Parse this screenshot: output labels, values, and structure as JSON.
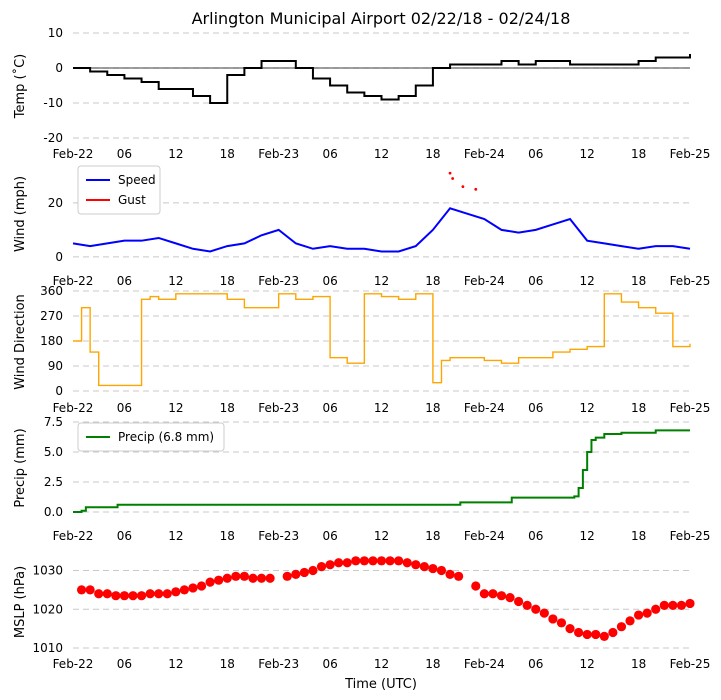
{
  "figure": {
    "title": "Arlington Municipal Airport 02/22/18 - 02/24/18",
    "xlabel": "Time (UTC)",
    "x_tick_labels": [
      "Feb-22",
      "06",
      "12",
      "18",
      "Feb-23",
      "06",
      "12",
      "18",
      "Feb-24",
      "06",
      "12",
      "18",
      "Feb-25"
    ]
  },
  "chart_data": [
    {
      "type": "line",
      "name": "temperature",
      "ylabel": "Temp (˚C)",
      "yticks": [
        10,
        0,
        -10,
        -20
      ],
      "ylim": [
        -20,
        10
      ],
      "color": "#000000",
      "series": [
        {
          "name": "Temp",
          "x_hours": [
            0,
            2,
            4,
            6,
            8,
            10,
            12,
            14,
            16,
            18,
            20,
            22,
            24,
            26,
            28,
            30,
            32,
            34,
            36,
            38,
            40,
            42,
            44,
            46,
            48,
            50,
            52,
            54,
            56,
            58,
            60,
            62,
            64,
            66,
            68,
            70,
            72
          ],
          "values": [
            0,
            -1,
            -2,
            -3,
            -4,
            -6,
            -6,
            -8,
            -10,
            -2,
            0,
            2,
            2,
            0,
            -3,
            -5,
            -7,
            -8,
            -9,
            -8,
            -5,
            0,
            1,
            1,
            1,
            2,
            1,
            2,
            2,
            1,
            1,
            1,
            1,
            2,
            3,
            3,
            4
          ]
        }
      ]
    },
    {
      "type": "line",
      "name": "wind",
      "ylabel": "Wind (mph)",
      "yticks": [
        20,
        0
      ],
      "ylim": [
        -3,
        34
      ],
      "legend": [
        "Speed",
        "Gust"
      ],
      "series": [
        {
          "name": "Speed",
          "color": "#0000ff",
          "x_hours": [
            0,
            2,
            4,
            6,
            8,
            10,
            12,
            14,
            16,
            18,
            20,
            22,
            24,
            26,
            28,
            30,
            32,
            34,
            36,
            38,
            40,
            42,
            44,
            46,
            48,
            50,
            52,
            54,
            56,
            58,
            60,
            62,
            64,
            66,
            68,
            70,
            72
          ],
          "values": [
            5,
            4,
            5,
            6,
            6,
            7,
            5,
            3,
            2,
            4,
            5,
            8,
            10,
            5,
            3,
            4,
            3,
            3,
            2,
            2,
            4,
            10,
            18,
            16,
            14,
            10,
            9,
            10,
            12,
            14,
            6,
            5,
            4,
            3,
            4,
            4,
            3
          ]
        },
        {
          "name": "Gust",
          "color": "#ff0000",
          "x_hours": [
            44,
            44.3,
            45.5,
            47
          ],
          "values": [
            31,
            29,
            26,
            25
          ]
        }
      ]
    },
    {
      "type": "line",
      "name": "wind_direction",
      "ylabel": "Wind Direction",
      "yticks": [
        360,
        270,
        180,
        90,
        0
      ],
      "ylim": [
        0,
        360
      ],
      "color": "#ffa500",
      "series": [
        {
          "name": "Direction",
          "x_hours": [
            0,
            1,
            2,
            3,
            4,
            6,
            8,
            9,
            10,
            12,
            14,
            16,
            18,
            20,
            22,
            24,
            26,
            28,
            30,
            32,
            34,
            36,
            38,
            40,
            42,
            43,
            44,
            46,
            48,
            50,
            52,
            54,
            56,
            58,
            60,
            62,
            64,
            66,
            68,
            70,
            72
          ],
          "values": [
            180,
            300,
            140,
            20,
            20,
            20,
            330,
            340,
            330,
            350,
            350,
            350,
            330,
            300,
            300,
            350,
            330,
            340,
            120,
            100,
            350,
            340,
            330,
            350,
            30,
            110,
            120,
            120,
            110,
            100,
            120,
            120,
            140,
            150,
            160,
            350,
            320,
            300,
            280,
            160,
            170
          ]
        }
      ]
    },
    {
      "type": "line",
      "name": "precip",
      "ylabel": "Precip (mm)",
      "yticks": [
        7.5,
        5.0,
        2.5,
        0.0
      ],
      "ylim": [
        0,
        7.5
      ],
      "legend": [
        "Precip (6.8 mm)"
      ],
      "color": "#008000",
      "series": [
        {
          "name": "Precip (6.8 mm)",
          "x_hours": [
            0,
            1,
            1.5,
            5,
            5.2,
            45,
            45.2,
            51,
            51.2,
            58.5,
            59,
            59.5,
            60,
            60.5,
            61,
            62,
            64,
            66,
            68,
            70,
            72
          ],
          "values": [
            0,
            0.1,
            0.4,
            0.4,
            0.6,
            0.6,
            0.8,
            0.8,
            1.2,
            1.3,
            2.0,
            3.5,
            5.0,
            6.0,
            6.2,
            6.5,
            6.6,
            6.6,
            6.8,
            6.8,
            6.8
          ]
        }
      ]
    },
    {
      "type": "scatter",
      "name": "mslp",
      "ylabel": "MSLP (hPa)",
      "yticks": [
        1030,
        1020,
        1010
      ],
      "ylim": [
        1010,
        1034
      ],
      "color": "#ff0000",
      "series": [
        {
          "name": "MSLP",
          "x_hours": [
            1,
            2,
            3,
            4,
            5,
            6,
            7,
            8,
            9,
            10,
            11,
            12,
            13,
            14,
            15,
            16,
            17,
            18,
            19,
            20,
            21,
            22,
            23,
            25,
            26,
            27,
            28,
            29,
            30,
            31,
            32,
            33,
            34,
            35,
            36,
            37,
            38,
            39,
            40,
            41,
            42,
            43,
            44,
            45,
            47,
            48,
            49,
            50,
            51,
            52,
            53,
            54,
            55,
            56,
            57,
            58,
            59,
            60,
            61,
            62,
            63,
            64,
            65,
            66,
            67,
            68,
            69,
            70,
            71,
            72
          ],
          "values": [
            1025,
            1025,
            1024,
            1024,
            1023.5,
            1023.5,
            1023.5,
            1023.5,
            1024,
            1024,
            1024,
            1024.5,
            1025,
            1025.5,
            1026,
            1027,
            1027.5,
            1028,
            1028.5,
            1028.5,
            1028,
            1028,
            1028,
            1028.5,
            1029,
            1029.5,
            1030,
            1031,
            1031.5,
            1032,
            1032,
            1032.5,
            1032.5,
            1032.5,
            1032.5,
            1032.5,
            1032.5,
            1032,
            1031.5,
            1031,
            1030.5,
            1030,
            1029,
            1028.5,
            1026,
            1024,
            1024,
            1023.5,
            1023,
            1022,
            1021,
            1020,
            1019,
            1017.5,
            1016.5,
            1015,
            1014,
            1013.5,
            1013.5,
            1013,
            1014,
            1015.5,
            1017,
            1018.5,
            1019,
            1020,
            1021,
            1021,
            1021,
            1021.5
          ]
        }
      ]
    }
  ]
}
